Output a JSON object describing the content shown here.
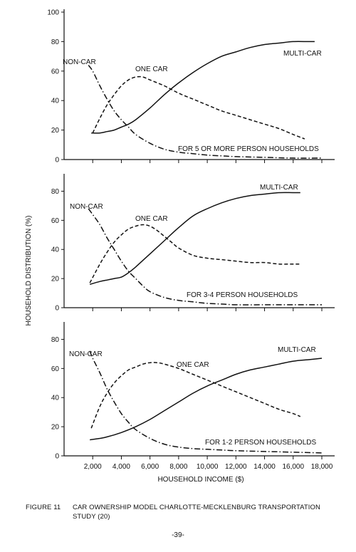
{
  "figure": {
    "number_label": "FIGURE 11",
    "caption_line1": "CAR OWNERSHIP MODEL CHARLOTTE-MECKLENBURG TRANSPORTATION",
    "caption_line2": "STUDY (20)",
    "page_number": "-39-"
  },
  "chart_data": [
    {
      "type": "line",
      "annotation": "FOR 5 OR MORE PERSON HOUSEHOLDS",
      "ylim": [
        0,
        100
      ],
      "yticks": [
        0,
        20,
        40,
        60,
        80,
        100
      ],
      "xlim": [
        0,
        18000
      ],
      "grid": false,
      "series": [
        {
          "name": "NON-CAR",
          "style": "dashdot",
          "x": [
            1700,
            2000,
            2500,
            3000,
            3500,
            4000,
            4500,
            5000,
            6000,
            7000,
            8000,
            9000,
            10000,
            11000,
            12000,
            14000,
            16000,
            18000
          ],
          "y": [
            64,
            60,
            50,
            41,
            33,
            27,
            22,
            17,
            11,
            7,
            5,
            4,
            3,
            2.5,
            2,
            1.5,
            1,
            1
          ]
        },
        {
          "name": "ONE CAR",
          "style": "dashed",
          "x": [
            2000,
            2500,
            3000,
            3500,
            4000,
            4500,
            5000,
            5500,
            6000,
            7000,
            8000,
            9000,
            10000,
            11000,
            12000,
            13000,
            14000,
            15000,
            16000,
            16800
          ],
          "y": [
            18,
            28,
            37,
            44,
            50,
            54,
            56,
            56,
            54,
            50,
            45,
            41,
            37,
            33,
            30,
            27,
            24,
            21,
            17,
            14
          ]
        },
        {
          "name": "MULTI-CAR",
          "style": "solid",
          "x": [
            1900,
            2500,
            3000,
            3500,
            4000,
            4500,
            5000,
            6000,
            7000,
            8000,
            9000,
            10000,
            11000,
            12000,
            13000,
            14000,
            15000,
            16000,
            17000,
            17500
          ],
          "y": [
            18,
            18,
            19,
            20,
            22,
            24,
            27,
            35,
            44,
            52,
            59,
            65,
            70,
            73,
            76,
            78,
            79,
            80,
            80,
            80
          ]
        }
      ],
      "labels": {
        "non_car": "NON-CAR",
        "one_car": "ONE CAR",
        "multi_car": "MULTI-CAR"
      }
    },
    {
      "type": "line",
      "annotation": "FOR 3-4 PERSON HOUSEHOLDS",
      "ylim": [
        0,
        90
      ],
      "yticks": [
        0,
        20,
        40,
        60,
        80
      ],
      "xlim": [
        0,
        18000
      ],
      "grid": false,
      "series": [
        {
          "name": "NON-CAR",
          "style": "dashdot",
          "x": [
            1700,
            2000,
            2500,
            3000,
            3500,
            4000,
            4500,
            5000,
            5500,
            6000,
            7000,
            8000,
            9000,
            10000,
            11000,
            12000,
            14000,
            16000,
            18000
          ],
          "y": [
            68,
            64,
            57,
            48,
            40,
            32,
            25,
            20,
            15,
            11,
            7,
            5,
            4,
            3,
            2.5,
            2,
            2,
            2,
            2
          ]
        },
        {
          "name": "ONE CAR",
          "style": "dashed",
          "x": [
            1800,
            2500,
            3000,
            3500,
            4000,
            4500,
            5000,
            5500,
            6000,
            6500,
            7000,
            7500,
            8000,
            9000,
            10000,
            11000,
            12000,
            13000,
            14000,
            15000,
            16000,
            16500
          ],
          "y": [
            17,
            30,
            38,
            45,
            50,
            54,
            56,
            57,
            56,
            53,
            49,
            45,
            41,
            36,
            34,
            33,
            32,
            31,
            31,
            30,
            30,
            30
          ]
        },
        {
          "name": "MULTI-CAR",
          "style": "solid",
          "x": [
            1800,
            2500,
            3000,
            3500,
            4000,
            4500,
            5000,
            6000,
            7000,
            8000,
            9000,
            10000,
            11000,
            12000,
            13000,
            14000,
            15000,
            16000,
            16500
          ],
          "y": [
            16,
            18,
            19,
            20,
            21,
            24,
            28,
            37,
            46,
            55,
            63,
            68,
            72,
            75,
            77,
            78,
            79,
            79,
            79
          ]
        }
      ],
      "labels": {
        "non_car": "NON-CAR",
        "one_car": "ONE CAR",
        "multi_car": "MULTI-CAR"
      }
    },
    {
      "type": "line",
      "annotation": "FOR 1-2 PERSON HOUSEHOLDS",
      "ylim": [
        0,
        90
      ],
      "yticks": [
        0,
        20,
        40,
        60,
        80
      ],
      "xlim": [
        0,
        18000
      ],
      "xticks": [
        2000,
        4000,
        6000,
        8000,
        10000,
        12000,
        14000,
        16000,
        18000
      ],
      "xtick_labels": [
        "2,000",
        "4,000",
        "6,000",
        "8,000",
        "10,000",
        "12,000",
        "14,000",
        "16,000",
        "18,000"
      ],
      "grid": false,
      "series": [
        {
          "name": "NON-CAR",
          "style": "dashdot",
          "x": [
            1800,
            2000,
            2500,
            3000,
            3500,
            4000,
            4500,
            5000,
            6000,
            7000,
            8000,
            9000,
            10000,
            11000,
            12000,
            14000,
            16000,
            18000
          ],
          "y": [
            72,
            67,
            57,
            46,
            37,
            29,
            23,
            18,
            12,
            8,
            6,
            5,
            4.5,
            4,
            3.5,
            3,
            2.5,
            2
          ]
        },
        {
          "name": "ONE CAR",
          "style": "dashed",
          "x": [
            1900,
            2500,
            3000,
            3500,
            4000,
            4500,
            5000,
            5500,
            6000,
            6500,
            7000,
            8000,
            9000,
            10000,
            11000,
            12000,
            13000,
            14000,
            15000,
            16000,
            16500
          ],
          "y": [
            19,
            34,
            43,
            50,
            55,
            59,
            61,
            63,
            64,
            64,
            63,
            60,
            56,
            52,
            48,
            44,
            40,
            36,
            32,
            29,
            27
          ]
        },
        {
          "name": "MULTI-CAR",
          "style": "solid",
          "x": [
            1800,
            2500,
            3000,
            4000,
            5000,
            6000,
            7000,
            8000,
            9000,
            10000,
            11000,
            12000,
            13000,
            14000,
            15000,
            16000,
            17000,
            18000
          ],
          "y": [
            11,
            12,
            13,
            16,
            20,
            25,
            31,
            37,
            43,
            48,
            52,
            56,
            59,
            61,
            63,
            65,
            66,
            67
          ]
        }
      ],
      "labels": {
        "non_car": "NON-CAR",
        "one_car": "ONE CAR",
        "multi_car": "MULTI-CAR"
      }
    }
  ],
  "axes": {
    "ylabel": "HOUSEHOLD DISTRIBUTION (%)",
    "xlabel": "HOUSEHOLD INCOME ($)"
  }
}
